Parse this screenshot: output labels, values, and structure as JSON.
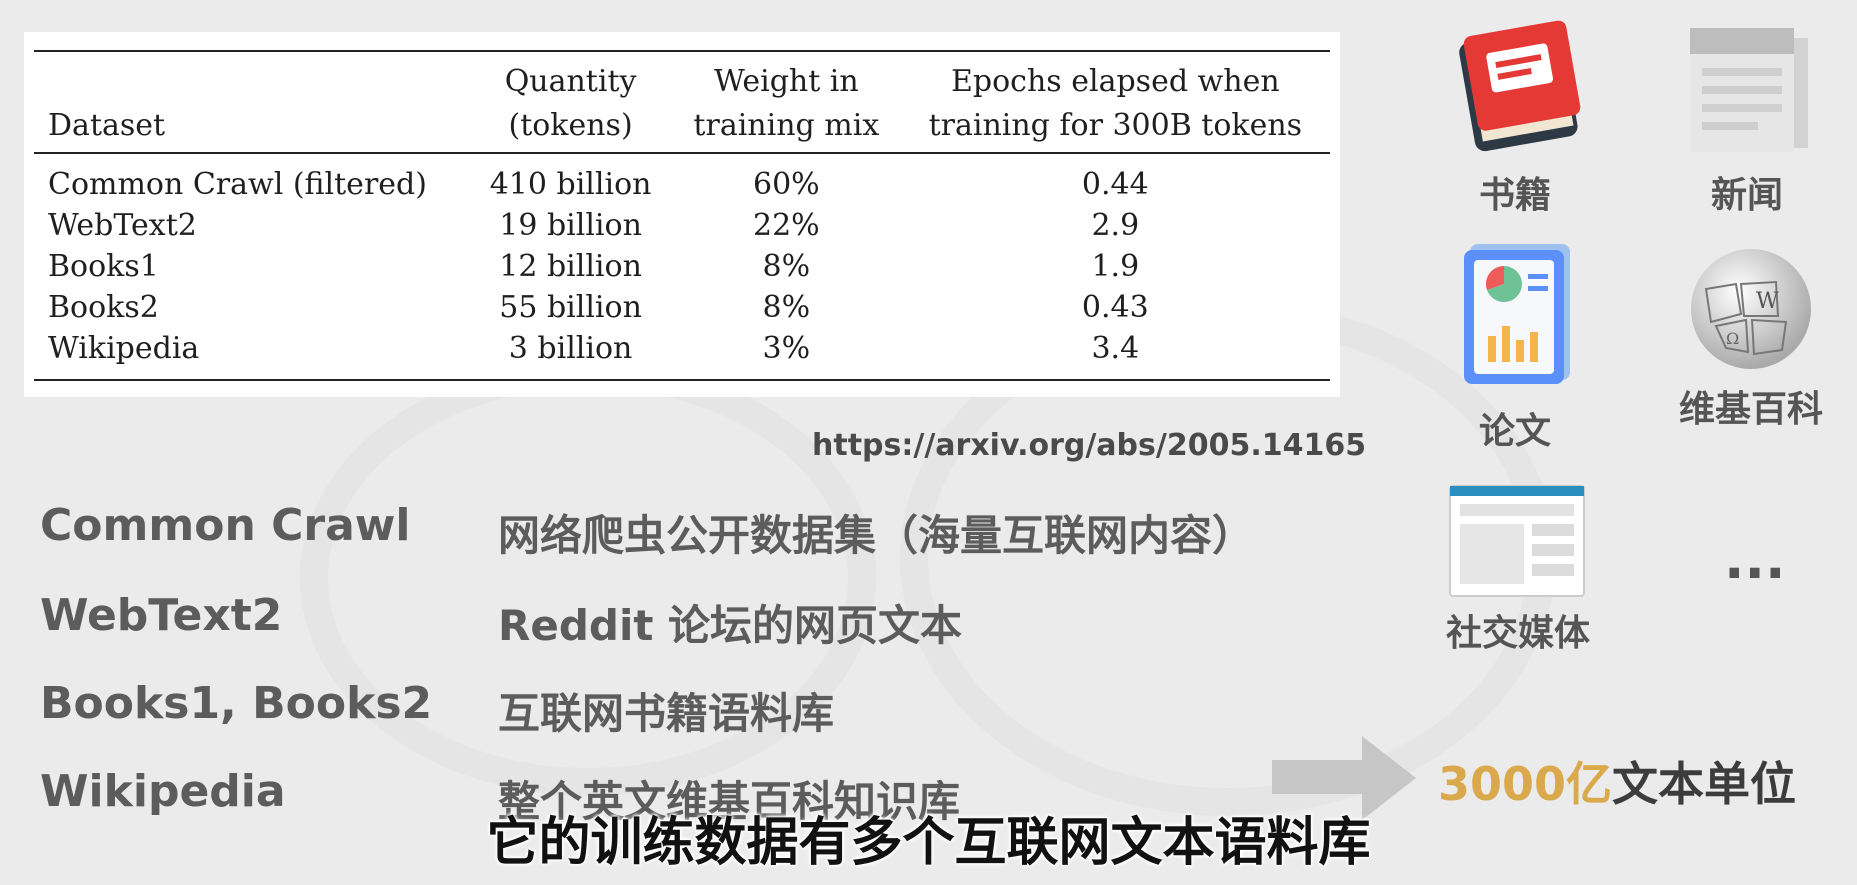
{
  "table": {
    "headers": {
      "dataset": "Dataset",
      "quantity_line1": "Quantity",
      "quantity_line2": "(tokens)",
      "weight_line1": "Weight in",
      "weight_line2": "training mix",
      "epochs_line1": "Epochs elapsed when",
      "epochs_line2": "training for 300B tokens"
    },
    "rows": [
      {
        "dataset": "Common Crawl (filtered)",
        "quantity": "410 billion",
        "weight": "60%",
        "epochs": "0.44"
      },
      {
        "dataset": "WebText2",
        "quantity": "19 billion",
        "weight": "22%",
        "epochs": "2.9"
      },
      {
        "dataset": "Books1",
        "quantity": "12 billion",
        "weight": "8%",
        "epochs": "1.9"
      },
      {
        "dataset": "Books2",
        "quantity": "55 billion",
        "weight": "8%",
        "epochs": "0.43"
      },
      {
        "dataset": "Wikipedia",
        "quantity": "3 billion",
        "weight": "3%",
        "epochs": "3.4"
      }
    ]
  },
  "source_url": "https://arxiv.org/abs/2005.14165",
  "descriptions": [
    {
      "name": "Common Crawl",
      "text": "网络爬虫公开数据集（海量互联网内容）"
    },
    {
      "name": "WebText2",
      "text": "Reddit 论坛的网页文本"
    },
    {
      "name": "Books1, Books2",
      "text": "互联网书籍语料库"
    },
    {
      "name": "Wikipedia",
      "text": "整个英文维基百科知识库"
    }
  ],
  "total": {
    "number": "3000亿",
    "unit": "文本单位"
  },
  "icons": {
    "books": {
      "label": "书籍",
      "icon": "book-icon"
    },
    "news": {
      "label": "新闻",
      "icon": "newspaper-icon"
    },
    "papers": {
      "label": "论文",
      "icon": "paper-chart-icon"
    },
    "wikipedia": {
      "label": "维基百科",
      "icon": "wikipedia-globe-icon"
    },
    "social": {
      "label": "社交媒体",
      "icon": "social-media-icon"
    },
    "more": "..."
  },
  "subtitle": "它的训练数据有多个互联网文本语料库",
  "colors": {
    "accent": "#d9a94b",
    "book_red": "#e53935",
    "paper_blue": "#5b8ff9",
    "social_teal": "#2a8fbf"
  }
}
